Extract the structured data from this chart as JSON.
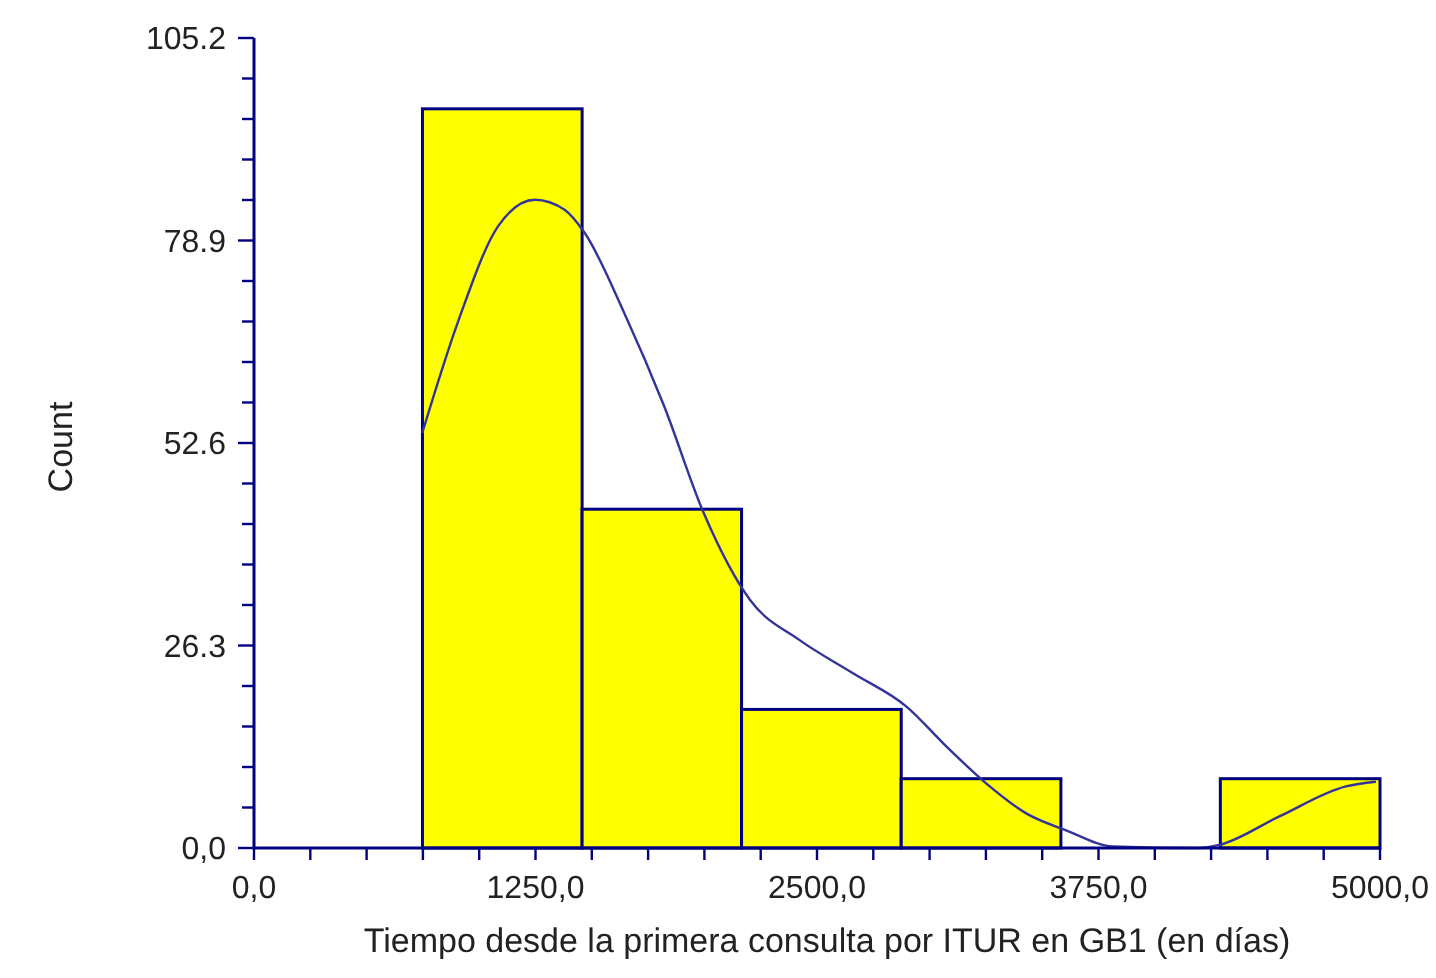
{
  "chart_data": {
    "type": "histogram",
    "xlabel": "Tiempo desde la primera consulta por ITUR en GB1 (en días)",
    "ylabel": "Count",
    "bins": [
      748,
      1457,
      2165,
      2874,
      3583,
      4291,
      5000
    ],
    "series": [
      {
        "color": "#ffff00",
        "values": [
          96,
          44,
          18,
          9,
          0,
          9
        ]
      },
      {
        "type": "line",
        "color": "#333399",
        "x": [
          747,
          909,
          1085,
          1247,
          1379,
          1468,
          1644,
          1821,
          1997,
          2203,
          2423,
          2660,
          2896,
          3074,
          3251,
          3429,
          3606,
          3814,
          4198,
          4287,
          4553,
          4849,
          4982
        ],
        "values": [
          53.9,
          68.6,
          80.8,
          84.2,
          82.9,
          79.9,
          69.5,
          57.4,
          43.5,
          32.2,
          27,
          22.7,
          18.4,
          13.2,
          8.4,
          4.5,
          2.3,
          0.2,
          0,
          0.4,
          4.1,
          8,
          8.6
        ]
      }
    ],
    "xlim": [
      0,
      5000
    ],
    "ylim": [
      0,
      105.2
    ],
    "xticks": [
      {
        "value": 0,
        "label": "0,0"
      },
      {
        "value": 250,
        "label": null
      },
      {
        "value": 500,
        "label": null
      },
      {
        "value": 750,
        "label": null
      },
      {
        "value": 1000,
        "label": null
      },
      {
        "value": 1250,
        "label": "1250,0"
      },
      {
        "value": 1500,
        "label": null
      },
      {
        "value": 1750,
        "label": null
      },
      {
        "value": 2000,
        "label": null
      },
      {
        "value": 2250,
        "label": null
      },
      {
        "value": 2500,
        "label": "2500,0"
      },
      {
        "value": 2750,
        "label": null
      },
      {
        "value": 3000,
        "label": null
      },
      {
        "value": 3250,
        "label": null
      },
      {
        "value": 3500,
        "label": null
      },
      {
        "value": 3750,
        "label": "3750,0"
      },
      {
        "value": 4000,
        "label": null
      },
      {
        "value": 4250,
        "label": null
      },
      {
        "value": 4500,
        "label": null
      },
      {
        "value": 4750,
        "label": null
      },
      {
        "value": 5000,
        "label": "5000,0"
      }
    ],
    "yticks": [
      {
        "value": 0,
        "label": "0,0"
      },
      {
        "value": 5.26,
        "label": null
      },
      {
        "value": 10.52,
        "label": null
      },
      {
        "value": 15.78,
        "label": null
      },
      {
        "value": 21.04,
        "label": null
      },
      26.3,
      {
        "value": 31.56,
        "label": null
      },
      {
        "value": 36.82,
        "label": null
      },
      {
        "value": 42.08,
        "label": null
      },
      {
        "value": 47.34,
        "label": null
      },
      52.6,
      {
        "value": 57.86,
        "label": null
      },
      {
        "value": 63.12,
        "label": null
      },
      {
        "value": 68.38,
        "label": null
      },
      {
        "value": 73.64,
        "label": null
      },
      78.9,
      {
        "value": 84.16,
        "label": null
      },
      {
        "value": 89.42,
        "label": null
      },
      {
        "value": 94.68,
        "label": null
      },
      {
        "value": 99.94,
        "label": null
      },
      105.2
    ],
    "grid": false
  }
}
